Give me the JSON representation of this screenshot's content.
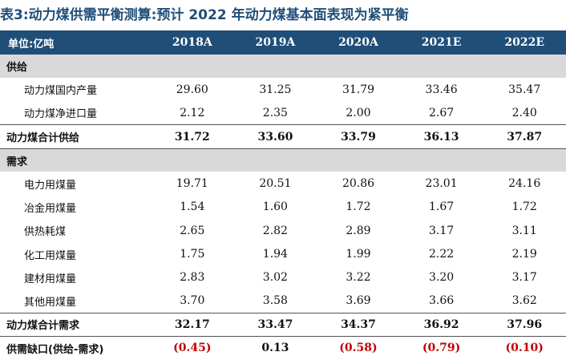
{
  "title": "表3:动力煤供需平衡测算:预计 2022 年动力煤基本面表现为紧平衡",
  "header": {
    "unit_label": "单位:亿吨",
    "years": [
      "2018A",
      "2019A",
      "2020A",
      "2021E",
      "2022E"
    ]
  },
  "supply": {
    "label": "供给",
    "rows": [
      {
        "label": "动力煤国内产量",
        "values": [
          "29.60",
          "31.25",
          "31.79",
          "33.46",
          "35.47"
        ]
      },
      {
        "label": "动力煤净进口量",
        "values": [
          "2.12",
          "2.35",
          "2.00",
          "2.67",
          "2.40"
        ]
      }
    ],
    "total": {
      "label": "动力煤合计供给",
      "values": [
        "31.72",
        "33.60",
        "33.79",
        "36.13",
        "37.87"
      ]
    }
  },
  "demand": {
    "label": "需求",
    "rows": [
      {
        "label": "电力用煤量",
        "values": [
          "19.71",
          "20.51",
          "20.86",
          "23.01",
          "24.16"
        ]
      },
      {
        "label": "冶金用煤量",
        "values": [
          "1.54",
          "1.60",
          "1.72",
          "1.67",
          "1.72"
        ]
      },
      {
        "label": "供热耗煤",
        "values": [
          "2.65",
          "2.82",
          "2.89",
          "3.17",
          "3.11"
        ]
      },
      {
        "label": "化工用煤量",
        "values": [
          "1.75",
          "1.94",
          "1.99",
          "2.22",
          "2.19"
        ]
      },
      {
        "label": "建材用煤量",
        "values": [
          "2.83",
          "3.02",
          "3.22",
          "3.20",
          "3.17"
        ]
      },
      {
        "label": "其他用煤量",
        "values": [
          "3.70",
          "3.58",
          "3.69",
          "3.66",
          "3.62"
        ]
      }
    ],
    "total": {
      "label": "动力煤合计需求",
      "values": [
        "32.17",
        "33.47",
        "34.37",
        "36.92",
        "37.96"
      ]
    }
  },
  "gap": {
    "label": "供需缺口(供给-需求)",
    "values": [
      "(0.45)",
      "0.13",
      "(0.58)",
      "(0.79)",
      "(0.10)"
    ]
  },
  "colors": {
    "header_bg": "#1f4e79",
    "section_bg": "#d9d9d9",
    "negative": "#c00000"
  }
}
